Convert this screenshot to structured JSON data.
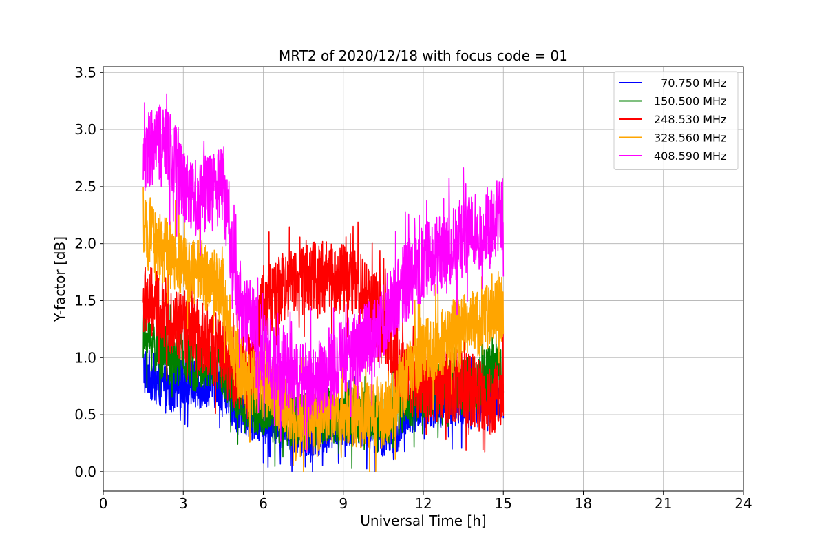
{
  "chart_data": {
    "type": "line",
    "title": "MRT2 of 2020/12/18 with focus code = 01",
    "xlabel": "Universal Time [h]",
    "ylabel": "Y-factor [dB]",
    "xlim": [
      0,
      24
    ],
    "ylim": [
      -0.17,
      3.55
    ],
    "xticks": [
      0,
      3,
      6,
      9,
      12,
      15,
      18,
      21,
      24
    ],
    "xtick_labels": [
      "0",
      "3",
      "6",
      "9",
      "12",
      "15",
      "18",
      "21",
      "24"
    ],
    "yticks": [
      0.0,
      0.5,
      1.0,
      1.5,
      2.0,
      2.5,
      3.0,
      3.5
    ],
    "ytick_labels": [
      "0.0",
      "0.5",
      "1.0",
      "1.5",
      "2.0",
      "2.5",
      "3.0",
      "3.5"
    ],
    "grid": true,
    "legend_position": "top-right",
    "x_range_of_data": [
      1.5,
      15.0
    ],
    "series": [
      {
        "name": "  70.750 MHz",
        "color": "#0000ff",
        "noise": 0.22,
        "x": [
          1.5,
          2.0,
          2.5,
          3.0,
          3.5,
          4.0,
          4.5,
          5.0,
          5.5,
          6.0,
          6.5,
          7.0,
          7.5,
          8.0,
          8.5,
          9.0,
          9.5,
          10.0,
          10.5,
          11.0,
          11.5,
          12.0,
          12.5,
          13.0,
          13.5,
          14.0,
          14.5,
          15.0
        ],
        "values": [
          0.9,
          0.8,
          0.7,
          0.8,
          0.75,
          0.8,
          0.75,
          0.55,
          0.5,
          0.45,
          0.45,
          0.4,
          0.35,
          0.35,
          0.4,
          0.45,
          0.45,
          0.4,
          0.35,
          0.35,
          0.55,
          0.6,
          0.6,
          0.6,
          0.6,
          0.6,
          0.6,
          0.65
        ]
      },
      {
        "name": "150.500 MHz",
        "color": "#008000",
        "noise": 0.25,
        "x": [
          1.5,
          2.0,
          2.5,
          3.0,
          3.5,
          4.0,
          4.5,
          5.0,
          5.5,
          6.0,
          6.5,
          7.0,
          7.5,
          8.0,
          8.5,
          9.0,
          9.5,
          10.0,
          10.5,
          11.0,
          11.5,
          12.0,
          12.5,
          13.0,
          13.5,
          14.0,
          14.5,
          15.0
        ],
        "values": [
          1.2,
          1.1,
          1.0,
          1.0,
          0.95,
          0.95,
          0.9,
          0.7,
          0.6,
          0.55,
          0.5,
          0.45,
          0.45,
          0.45,
          0.5,
          0.5,
          0.5,
          0.5,
          0.45,
          0.5,
          0.65,
          0.7,
          0.7,
          0.75,
          0.75,
          0.8,
          0.85,
          0.9
        ]
      },
      {
        "name": "248.530 MHz",
        "color": "#ff0000",
        "noise": 0.32,
        "x": [
          1.5,
          2.0,
          2.5,
          3.0,
          3.5,
          4.0,
          4.5,
          5.0,
          5.5,
          6.0,
          6.5,
          7.0,
          7.5,
          8.0,
          8.5,
          9.0,
          9.5,
          10.0,
          10.5,
          11.0,
          11.5,
          12.0,
          12.5,
          13.0,
          13.5,
          14.0,
          14.5,
          15.0
        ],
        "values": [
          1.5,
          1.45,
          1.35,
          1.25,
          1.2,
          1.15,
          1.0,
          0.85,
          0.9,
          1.5,
          1.55,
          1.7,
          1.75,
          1.7,
          1.7,
          1.7,
          1.65,
          1.5,
          1.3,
          1.0,
          0.8,
          0.75,
          0.75,
          0.75,
          0.75,
          0.7,
          0.6,
          0.75
        ]
      },
      {
        "name": "328.560 MHz",
        "color": "#ffa500",
        "noise": 0.3,
        "x": [
          1.5,
          2.0,
          2.5,
          3.0,
          3.5,
          4.0,
          4.5,
          5.0,
          5.5,
          6.0,
          6.5,
          7.0,
          7.5,
          8.0,
          8.5,
          9.0,
          9.5,
          10.0,
          10.5,
          11.0,
          11.5,
          12.0,
          12.5,
          13.0,
          13.5,
          14.0,
          14.5,
          15.0
        ],
        "values": [
          2.1,
          2.0,
          1.9,
          1.8,
          1.75,
          1.7,
          1.55,
          0.95,
          0.8,
          0.75,
          0.65,
          0.55,
          0.45,
          0.45,
          0.55,
          0.55,
          0.5,
          0.5,
          0.5,
          0.6,
          0.9,
          1.05,
          1.1,
          1.2,
          1.25,
          1.3,
          1.35,
          1.45
        ]
      },
      {
        "name": "408.590 MHz",
        "color": "#ff00ff",
        "noise": 0.35,
        "x": [
          1.5,
          2.0,
          2.5,
          3.0,
          3.5,
          4.0,
          4.5,
          5.0,
          5.5,
          6.0,
          6.5,
          7.0,
          7.5,
          8.0,
          8.5,
          9.0,
          9.5,
          10.0,
          10.5,
          11.0,
          11.5,
          12.0,
          12.5,
          13.0,
          13.5,
          14.0,
          14.5,
          15.0
        ],
        "values": [
          2.75,
          2.9,
          2.8,
          2.55,
          2.4,
          2.45,
          2.5,
          1.6,
          1.35,
          1.05,
          0.95,
          0.85,
          0.8,
          0.8,
          0.85,
          1.0,
          1.1,
          1.2,
          1.35,
          1.55,
          1.7,
          1.85,
          1.9,
          1.95,
          2.05,
          2.1,
          2.2,
          2.25
        ]
      }
    ]
  }
}
